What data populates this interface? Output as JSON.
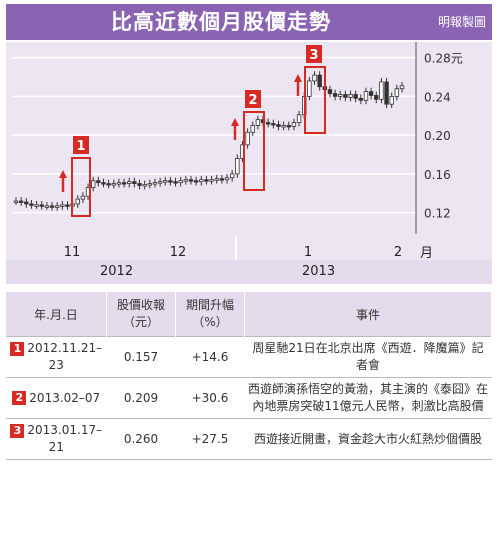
{
  "header": {
    "title": "比高近數個月股價走勢",
    "credit": "明報製圖"
  },
  "chart_data": {
    "type": "candlestick",
    "title": "比高近數個月股價走勢",
    "y_unit": "元",
    "ylim": [
      0.1,
      0.29
    ],
    "y_ticks": [
      "0.28元",
      "0.24",
      "0.20",
      "0.16",
      "0.12"
    ],
    "y_tick_values": [
      0.28,
      0.24,
      0.2,
      0.16,
      0.12
    ],
    "x_axis_unit": "月",
    "x_axis_unit2": "年",
    "x_ticks": [
      "11",
      "12",
      "1",
      "2"
    ],
    "years": [
      "2012",
      "2013"
    ],
    "price_series": [
      0.132,
      0.131,
      0.129,
      0.128,
      0.128,
      0.127,
      0.127,
      0.126,
      0.127,
      0.128,
      0.127,
      0.129,
      0.134,
      0.137,
      0.146,
      0.153,
      0.151,
      0.15,
      0.149,
      0.15,
      0.151,
      0.15,
      0.152,
      0.15,
      0.148,
      0.149,
      0.15,
      0.151,
      0.152,
      0.153,
      0.152,
      0.151,
      0.153,
      0.154,
      0.153,
      0.152,
      0.154,
      0.153,
      0.154,
      0.155,
      0.154,
      0.156,
      0.16,
      0.176,
      0.19,
      0.203,
      0.21,
      0.216,
      0.213,
      0.212,
      0.211,
      0.209,
      0.21,
      0.209,
      0.213,
      0.221,
      0.24,
      0.256,
      0.262,
      0.25,
      0.247,
      0.243,
      0.24,
      0.242,
      0.239,
      0.242,
      0.238,
      0.236,
      0.245,
      0.241,
      0.237,
      0.255,
      0.232,
      0.24,
      0.248,
      0.251
    ],
    "highlights": [
      {
        "label": "1"
      },
      {
        "label": "2"
      },
      {
        "label": "3"
      }
    ]
  },
  "table": {
    "headers": [
      "年.月.日",
      "股價收報\n（元）",
      "期間升幅\n（%）",
      "事件"
    ],
    "rows": [
      {
        "badge": "1",
        "date": "2012.11.21–23",
        "price": "0.157",
        "change": "+14.6",
        "event": "周星馳21日在北京出席《西遊．降魔篇》記者會"
      },
      {
        "badge": "2",
        "date": "2013.02–07",
        "price": "0.209",
        "change": "+30.6",
        "event": "西遊師演孫悟空的黃渤，其主演的《泰囧》在內地票房突破11億元人民幣，刺激比高股價"
      },
      {
        "badge": "3",
        "date": "2013.01.17–21",
        "price": "0.260",
        "change": "+27.5",
        "event": "西遊接近開畫，資金趁大市火紅熱炒個價股"
      }
    ]
  },
  "colors": {
    "header": "#8a63b3",
    "chart_bg": "#ece6f2",
    "highlight": "#d62b25",
    "candle": "#333333"
  }
}
